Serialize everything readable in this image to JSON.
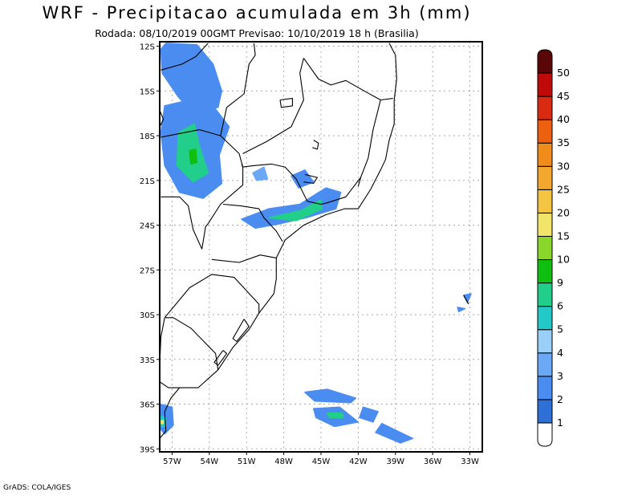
{
  "header": {
    "title": "WRF - Precipitacao acumulada em 3h (mm)",
    "subtitle": "Rodada: 08/10/2019 00GMT Previsao: 10/10/2019 18 h (Brasilia)"
  },
  "footer": {
    "credit": "GrADS: COLA/IGES"
  },
  "map": {
    "lon_range": [
      -58,
      -32
    ],
    "lat_range": [
      -39.2,
      -11.7
    ],
    "lon_ticks": [
      {
        "value": -57,
        "label": "57W"
      },
      {
        "value": -54,
        "label": "54W"
      },
      {
        "value": -51,
        "label": "51W"
      },
      {
        "value": -48,
        "label": "48W"
      },
      {
        "value": -45,
        "label": "45W"
      },
      {
        "value": -42,
        "label": "42W"
      },
      {
        "value": -39,
        "label": "39W"
      },
      {
        "value": -36,
        "label": "36W"
      },
      {
        "value": -33,
        "label": "33W"
      }
    ],
    "lat_ticks": [
      {
        "value": -12,
        "label": "12S"
      },
      {
        "value": -15,
        "label": "15S"
      },
      {
        "value": -18,
        "label": "18S"
      },
      {
        "value": -21,
        "label": "21S"
      },
      {
        "value": -24,
        "label": "24S"
      },
      {
        "value": -27,
        "label": "27S"
      },
      {
        "value": -30,
        "label": "30S"
      },
      {
        "value": -33,
        "label": "33S"
      },
      {
        "value": -36,
        "label": "36S"
      },
      {
        "value": -39,
        "label": "39S"
      }
    ],
    "gridlines": true
  },
  "colorbar": {
    "levels": [
      {
        "label": "1",
        "color": "#2f6fd8"
      },
      {
        "label": "2",
        "color": "#4a8cef"
      },
      {
        "label": "3",
        "color": "#6ba8f5"
      },
      {
        "label": "4",
        "color": "#9acff8"
      },
      {
        "label": "5",
        "color": "#23c8c8"
      },
      {
        "label": "6",
        "color": "#22cf8a"
      },
      {
        "label": "9",
        "color": "#10c010"
      },
      {
        "label": "10",
        "color": "#8ad62a"
      },
      {
        "label": "15",
        "color": "#f2e36a"
      },
      {
        "label": "20",
        "color": "#f4c542"
      },
      {
        "label": "25",
        "color": "#f3a72e"
      },
      {
        "label": "30",
        "color": "#f08c1a"
      },
      {
        "label": "35",
        "color": "#ec6010"
      },
      {
        "label": "40",
        "color": "#db2a12"
      },
      {
        "label": "45",
        "color": "#c00a0a"
      },
      {
        "label": "50",
        "color": "#970808"
      },
      {
        "label": "",
        "color": "#5a0606"
      }
    ]
  },
  "precip_areas": [
    {
      "id": "rondonia-mt-north",
      "fill": "#4a8cef",
      "points": [
        [
          -57.5,
          -11.8
        ],
        [
          -55,
          -11.9
        ],
        [
          -53.7,
          -13.2
        ],
        [
          -53,
          -15
        ],
        [
          -53.3,
          -16.1
        ],
        [
          -55.4,
          -16.4
        ],
        [
          -56.5,
          -15.4
        ],
        [
          -57.8,
          -13.8
        ],
        [
          -57.9,
          -12.2
        ]
      ]
    },
    {
      "id": "mt-central-band",
      "fill": "#4a8cef",
      "points": [
        [
          -57.6,
          -16
        ],
        [
          -55.6,
          -15.6
        ],
        [
          -53.6,
          -16.1
        ],
        [
          -52.4,
          -17.4
        ],
        [
          -53.2,
          -19.3
        ],
        [
          -53,
          -21.2
        ],
        [
          -54.5,
          -22.2
        ],
        [
          -56.4,
          -21.8
        ],
        [
          -57.6,
          -20
        ],
        [
          -57.9,
          -17.8
        ]
      ]
    },
    {
      "id": "mt-central-core",
      "fill": "#22cf8a",
      "points": [
        [
          -56.5,
          -17.8
        ],
        [
          -55.2,
          -17.2
        ],
        [
          -54.8,
          -18.7
        ],
        [
          -54.1,
          -20.5
        ],
        [
          -55.3,
          -21.1
        ],
        [
          -56.6,
          -20
        ]
      ]
    },
    {
      "id": "mt-core-peak",
      "fill": "#10c010",
      "points": [
        [
          -55.6,
          -19
        ],
        [
          -55.1,
          -18.9
        ],
        [
          -55,
          -19.8
        ],
        [
          -55.5,
          -19.9
        ]
      ]
    },
    {
      "id": "sp-rj-band",
      "fill": "#4a8cef",
      "points": [
        [
          -51.4,
          -23.6
        ],
        [
          -49.2,
          -22.9
        ],
        [
          -46.7,
          -22.6
        ],
        [
          -44.6,
          -21.5
        ],
        [
          -43.4,
          -21.8
        ],
        [
          -43.8,
          -22.9
        ],
        [
          -46.2,
          -23.5
        ],
        [
          -48.3,
          -23.9
        ],
        [
          -50.3,
          -24.2
        ]
      ]
    },
    {
      "id": "sp-rj-core",
      "fill": "#22cf8a",
      "points": [
        [
          -49.2,
          -23.5
        ],
        [
          -46.6,
          -23
        ],
        [
          -45,
          -22.3
        ],
        [
          -44.9,
          -22.9
        ],
        [
          -47,
          -23.7
        ]
      ]
    },
    {
      "id": "sp-central-cells",
      "fill": "#4a8cef",
      "points": [
        [
          -47.4,
          -20.7
        ],
        [
          -46.3,
          -20.3
        ],
        [
          -45.6,
          -21.1
        ],
        [
          -46.8,
          -21.5
        ]
      ]
    },
    {
      "id": "sp-northeast-cells",
      "fill": "#6ba8f5",
      "points": [
        [
          -50.5,
          -20.5
        ],
        [
          -49.6,
          -20.1
        ],
        [
          -49.3,
          -20.9
        ],
        [
          -50.2,
          -21
        ]
      ]
    },
    {
      "id": "atlantic-cell-a",
      "fill": "#4a8cef",
      "points": [
        [
          -46.3,
          -35.2
        ],
        [
          -44.5,
          -35
        ],
        [
          -42.2,
          -35.6
        ],
        [
          -42.6,
          -35.9
        ],
        [
          -45.5,
          -35.8
        ]
      ]
    },
    {
      "id": "atlantic-cell-b",
      "fill": "#4a8cef",
      "points": [
        [
          -45.6,
          -36.3
        ],
        [
          -43.5,
          -36.2
        ],
        [
          -42,
          -37.2
        ],
        [
          -43.9,
          -37.5
        ],
        [
          -45.4,
          -36.9
        ]
      ]
    },
    {
      "id": "atlantic-cell-b-core",
      "fill": "#22cf8a",
      "points": [
        [
          -44.5,
          -36.6
        ],
        [
          -43.3,
          -36.6
        ],
        [
          -43.2,
          -36.9
        ],
        [
          -44.3,
          -36.9
        ]
      ]
    },
    {
      "id": "atlantic-cell-c",
      "fill": "#4a8cef",
      "points": [
        [
          -41.6,
          -36.2
        ],
        [
          -40.4,
          -36.5
        ],
        [
          -40.8,
          -37.2
        ],
        [
          -41.9,
          -36.9
        ]
      ]
    },
    {
      "id": "atlantic-cell-d",
      "fill": "#4a8cef",
      "points": [
        [
          -40.1,
          -37.3
        ],
        [
          -37.6,
          -38.3
        ],
        [
          -38.6,
          -38.6
        ],
        [
          -40.6,
          -37.9
        ]
      ]
    },
    {
      "id": "atlantic-dot-e",
      "fill": "#4a8cef",
      "points": [
        [
          -33.5,
          -28.7
        ],
        [
          -32.9,
          -28.6
        ],
        [
          -33.2,
          -29.2
        ]
      ]
    },
    {
      "id": "atlantic-dot-f",
      "fill": "#4a8cef",
      "points": [
        [
          -34,
          -29.5
        ],
        [
          -33.4,
          -29.6
        ],
        [
          -33.9,
          -29.8
        ]
      ]
    },
    {
      "id": "uruguay-cell",
      "fill": "#4a8cef",
      "points": [
        [
          -58,
          -36
        ],
        [
          -57,
          -36.2
        ],
        [
          -56.9,
          -37.4
        ],
        [
          -57.6,
          -38
        ],
        [
          -58,
          -37.6
        ]
      ]
    },
    {
      "id": "uruguay-core",
      "fill": "#23c8c8",
      "points": [
        [
          -58,
          -36.8
        ],
        [
          -57.5,
          -36.9
        ],
        [
          -57.5,
          -37.5
        ],
        [
          -58,
          -37.5
        ]
      ]
    },
    {
      "id": "uruguay-peak",
      "fill": "#f2e36a",
      "points": [
        [
          -58,
          -37.1
        ],
        [
          -57.7,
          -37.1
        ],
        [
          -57.7,
          -37.3
        ],
        [
          -58,
          -37.3
        ]
      ]
    }
  ],
  "boundaries": [
    {
      "id": "coastline",
      "points": [
        [
          -39.5,
          -11.8
        ],
        [
          -39,
          -12.6
        ],
        [
          -38.9,
          -14.2
        ],
        [
          -39.1,
          -15.6
        ],
        [
          -39.1,
          -17.2
        ],
        [
          -39.5,
          -18.3
        ],
        [
          -39.8,
          -19.6
        ],
        [
          -40.2,
          -20.3
        ],
        [
          -41,
          -21.6
        ],
        [
          -42,
          -22.9
        ],
        [
          -43.1,
          -22.9
        ],
        [
          -44.6,
          -23.3
        ],
        [
          -46.4,
          -24
        ],
        [
          -47.9,
          -25
        ],
        [
          -48.6,
          -26.2
        ],
        [
          -48.6,
          -27.6
        ],
        [
          -48.8,
          -28.6
        ],
        [
          -50,
          -29.9
        ],
        [
          -50.8,
          -31
        ],
        [
          -52.1,
          -32.2
        ],
        [
          -53.3,
          -33.7
        ],
        [
          -54.9,
          -34.9
        ],
        [
          -56.4,
          -34.9
        ],
        [
          -57.1,
          -35.6
        ],
        [
          -57.6,
          -36.5
        ],
        [
          -57.5,
          -37.8
        ],
        [
          -58,
          -38.3
        ]
      ]
    },
    {
      "id": "rs-border",
      "points": [
        [
          -53.3,
          -33.7
        ],
        [
          -53.5,
          -32.6
        ],
        [
          -55.5,
          -30.9
        ],
        [
          -56.9,
          -30.2
        ],
        [
          -57.6,
          -30.2
        ]
      ]
    },
    {
      "id": "sc-rs",
      "points": [
        [
          -57.6,
          -30.2
        ],
        [
          -55.6,
          -28.2
        ],
        [
          -53.8,
          -27.3
        ],
        [
          -52,
          -27.5
        ],
        [
          -50,
          -29.3
        ],
        [
          -50,
          -29.9
        ]
      ]
    },
    {
      "id": "pr-sc",
      "points": [
        [
          -53.8,
          -26.3
        ],
        [
          -51.6,
          -26.5
        ],
        [
          -49.9,
          -26
        ],
        [
          -48.6,
          -26.2
        ]
      ]
    },
    {
      "id": "parana-river",
      "points": [
        [
          -54.6,
          -25.6
        ],
        [
          -54.3,
          -24.1
        ],
        [
          -54.1,
          -23.9
        ],
        [
          -53.1,
          -22.6
        ],
        [
          -51.3,
          -21.3
        ],
        [
          -51.3,
          -20.1
        ],
        [
          -51.4,
          -19.9
        ]
      ]
    },
    {
      "id": "pr-sp",
      "points": [
        [
          -52.9,
          -22.6
        ],
        [
          -51.5,
          -22.7
        ],
        [
          -50,
          -22.9
        ],
        [
          -49.6,
          -23.5
        ],
        [
          -48.6,
          -24.4
        ],
        [
          -48.1,
          -25.1
        ]
      ]
    },
    {
      "id": "paraguay-border",
      "points": [
        [
          -54.6,
          -25.6
        ],
        [
          -55.3,
          -24.3
        ],
        [
          -55.7,
          -22.7
        ],
        [
          -56.4,
          -22.1
        ],
        [
          -57.9,
          -22.1
        ]
      ]
    },
    {
      "id": "ms-mt",
      "points": [
        [
          -57.9,
          -18.1
        ],
        [
          -54.8,
          -17.6
        ],
        [
          -53.1,
          -18
        ],
        [
          -51.6,
          -19.2
        ],
        [
          -51.3,
          -20.1
        ]
      ]
    },
    {
      "id": "mt-go",
      "points": [
        [
          -53.1,
          -18
        ],
        [
          -52.6,
          -16.1
        ],
        [
          -51.2,
          -15.2
        ],
        [
          -50.8,
          -13.2
        ],
        [
          -50.3,
          -12.6
        ],
        [
          -50.4,
          -11.8
        ]
      ]
    },
    {
      "id": "mt-ro",
      "points": [
        [
          -57.9,
          -13.6
        ],
        [
          -56.2,
          -13.2
        ],
        [
          -55.1,
          -12.7
        ],
        [
          -54.1,
          -11.8
        ]
      ]
    },
    {
      "id": "go-mg",
      "points": [
        [
          -51.3,
          -19.2
        ],
        [
          -49.4,
          -18.4
        ],
        [
          -47.4,
          -17.4
        ],
        [
          -46.4,
          -15.6
        ],
        [
          -46.7,
          -13.8
        ],
        [
          -46.4,
          -12.8
        ]
      ]
    },
    {
      "id": "to-ba",
      "points": [
        [
          -46.4,
          -12.8
        ],
        [
          -45.2,
          -14.2
        ],
        [
          -44.2,
          -14.6
        ],
        [
          -43,
          -14.3
        ],
        [
          -41.3,
          -15.1
        ],
        [
          -40.2,
          -15.6
        ],
        [
          -39.2,
          -15.5
        ]
      ]
    },
    {
      "id": "mg-es",
      "points": [
        [
          -40.2,
          -15.6
        ],
        [
          -40.8,
          -17.6
        ],
        [
          -41.2,
          -19.5
        ],
        [
          -41.8,
          -20.8
        ],
        [
          -42,
          -21.4
        ]
      ]
    },
    {
      "id": "mg-rj",
      "points": [
        [
          -41.8,
          -20.8
        ],
        [
          -43,
          -22.1
        ],
        [
          -44.5,
          -22.5
        ],
        [
          -45,
          -22.6
        ]
      ]
    },
    {
      "id": "mg-sp",
      "points": [
        [
          -45,
          -22.6
        ],
        [
          -46.1,
          -22.4
        ],
        [
          -47,
          -20.9
        ],
        [
          -47.9,
          -20.1
        ],
        [
          -49,
          -19.9
        ],
        [
          -50.3,
          -20
        ],
        [
          -51.3,
          -20.1
        ]
      ]
    },
    {
      "id": "df-go",
      "points": [
        [
          -48.3,
          -15.6
        ],
        [
          -47.3,
          -15.5
        ],
        [
          -47.3,
          -16
        ],
        [
          -48.2,
          -16.1
        ],
        [
          -48.3,
          -15.6
        ]
      ]
    },
    {
      "id": "lagoa-patos",
      "points": [
        [
          -51.2,
          -30.3
        ],
        [
          -52.1,
          -31.6
        ],
        [
          -51.8,
          -31.8
        ],
        [
          -50.8,
          -30.8
        ],
        [
          -51.2,
          -30.3
        ]
      ]
    },
    {
      "id": "lagoa-mirim",
      "points": [
        [
          -52.9,
          -32.4
        ],
        [
          -53.6,
          -33.2
        ],
        [
          -53.3,
          -33.4
        ],
        [
          -52.6,
          -32.6
        ],
        [
          -52.9,
          -32.4
        ]
      ]
    },
    {
      "id": "uruguay-argentina",
      "points": [
        [
          -57.6,
          -30.2
        ],
        [
          -57.9,
          -31.5
        ],
        [
          -58,
          -33.3
        ]
      ]
    },
    {
      "id": "plata-estuary",
      "points": [
        [
          -58,
          -34.5
        ],
        [
          -57.3,
          -34.9
        ],
        [
          -56.4,
          -34.9
        ]
      ]
    },
    {
      "id": "bolivia-border",
      "points": [
        [
          -58,
          -16.3
        ],
        [
          -57.7,
          -16.9
        ],
        [
          -58,
          -17.4
        ]
      ]
    },
    {
      "id": "reservoir-mg",
      "points": [
        [
          -45.6,
          -18.3
        ],
        [
          -45.2,
          -18.5
        ],
        [
          -45.3,
          -18.9
        ],
        [
          -45.7,
          -18.8
        ]
      ]
    },
    {
      "id": "reservoir-furnas",
      "points": [
        [
          -46.3,
          -20.6
        ],
        [
          -45.3,
          -20.8
        ],
        [
          -45.6,
          -21.2
        ],
        [
          -46.4,
          -21.1
        ]
      ]
    },
    {
      "id": "islands",
      "points": [
        [
          -33.5,
          -28.7
        ],
        [
          -33.1,
          -29.3
        ]
      ]
    }
  ]
}
